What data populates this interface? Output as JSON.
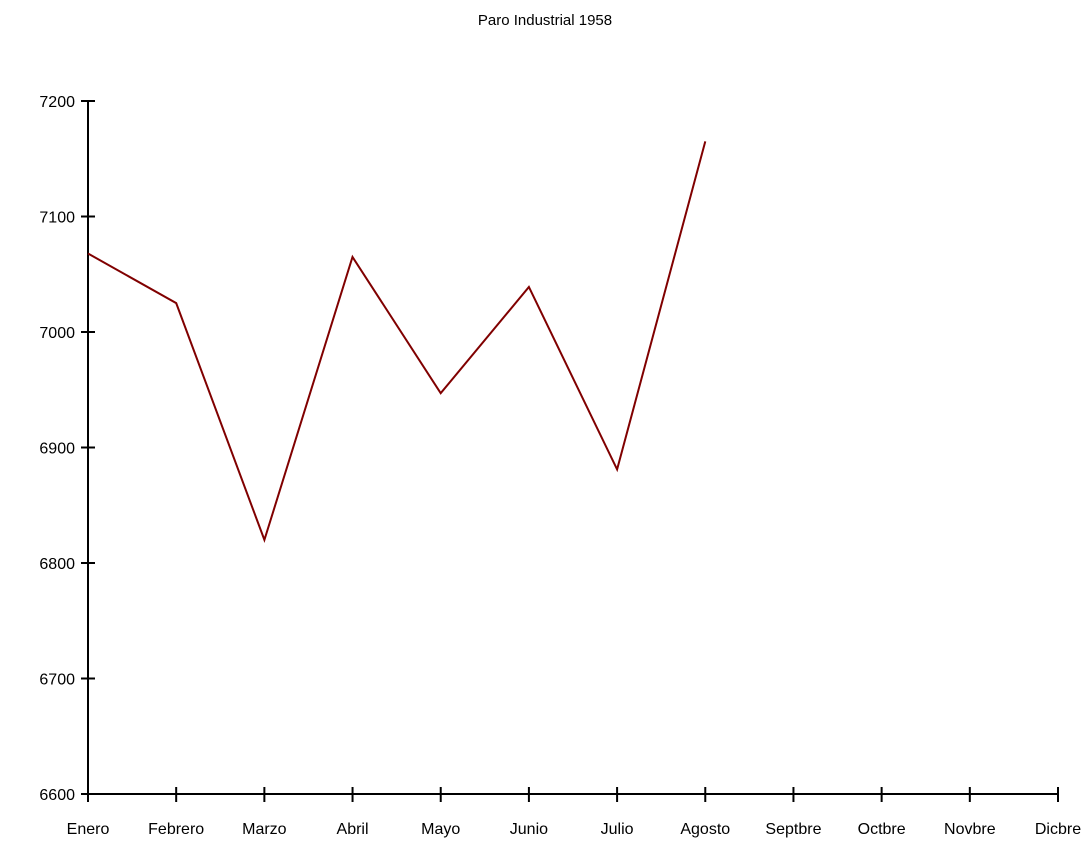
{
  "chart_data": {
    "type": "line",
    "title": "Paro Industrial 1958",
    "xlabel": "",
    "ylabel": "",
    "categories": [
      "Enero",
      "Febrero",
      "Marzo",
      "Abril",
      "Mayo",
      "Junio",
      "Julio",
      "Agosto",
      "Septbre",
      "Octbre",
      "Novbre",
      "Dicbre"
    ],
    "series": [
      {
        "values": [
          7068,
          7025,
          6820,
          7065,
          6947,
          7039,
          6881,
          7165,
          null,
          null,
          null,
          null
        ],
        "color": "#800000"
      }
    ],
    "ylim": [
      6600,
      7200
    ],
    "yticks": [
      6600,
      6700,
      6800,
      6900,
      7000,
      7100,
      7200
    ],
    "grid": false,
    "legend": "none"
  }
}
